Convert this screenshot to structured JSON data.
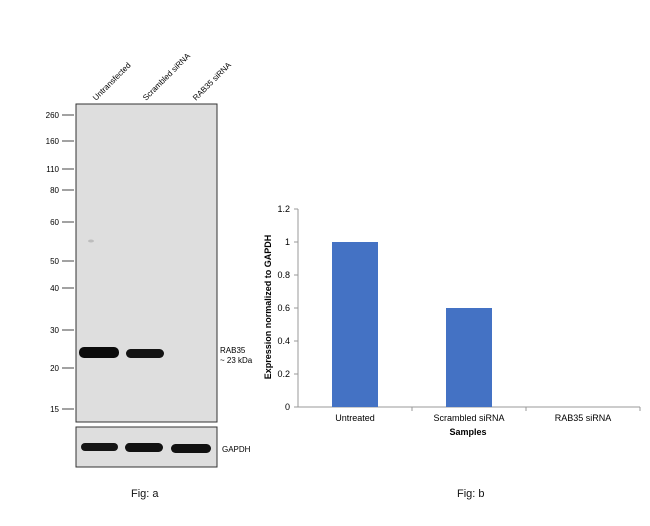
{
  "blot": {
    "lanes": [
      "Untransfected",
      "Scrambled siRNA",
      "RAB35 siRNA"
    ],
    "mw_markers": [
      "260",
      "160",
      "110",
      "80",
      "60",
      "50",
      "40",
      "30",
      "20",
      "15"
    ],
    "target_label": "RAB35",
    "target_size": "~ 23 kDa",
    "loading_control": "GAPDH",
    "caption": "Fig: a"
  },
  "chart_data": {
    "type": "bar",
    "categories": [
      "Untreated",
      "Scrambled siRNA",
      "RAB35 siRNA"
    ],
    "values": [
      1.0,
      0.6,
      0.0
    ],
    "xlabel": "Samples",
    "ylabel": "Expression normalized to GAPDH",
    "ylim": [
      0,
      1.2
    ],
    "yticks": [
      0,
      0.2,
      0.4,
      0.6,
      0.8,
      1,
      1.2
    ],
    "bar_color": "#4472c4",
    "grid": false,
    "caption": "Fig: b"
  }
}
